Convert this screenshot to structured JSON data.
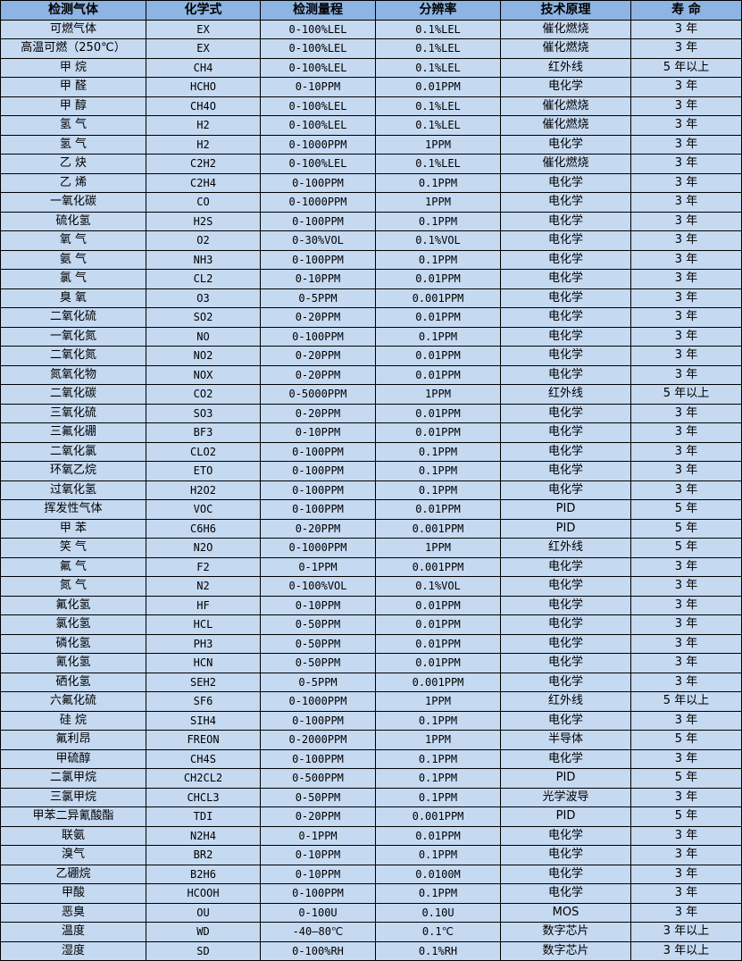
{
  "colors": {
    "header_bg": "#8db4e2",
    "row_bg": "#c5d9f1",
    "border": "#000000"
  },
  "table": {
    "headers": [
      "检测气体",
      "化学式",
      "检测量程",
      "分辨率",
      "技术原理",
      "寿 命"
    ],
    "rows": [
      [
        "可燃气体",
        "EX",
        "0-100%LEL",
        "0.1%LEL",
        "催化燃烧",
        "3 年"
      ],
      [
        "高温可燃（250℃）",
        "EX",
        "0-100%LEL",
        "0.1%LEL",
        "催化燃烧",
        "3 年"
      ],
      [
        "甲 烷",
        "CH4",
        "0-100%LEL",
        "0.1%LEL",
        "红外线",
        "5 年以上"
      ],
      [
        "甲 醛",
        "HCHO",
        "0-10PPM",
        "0.01PPM",
        "电化学",
        "3 年"
      ],
      [
        "甲 醇",
        "CH4O",
        "0-100%LEL",
        "0.1%LEL",
        "催化燃烧",
        "3 年"
      ],
      [
        "氢 气",
        "H2",
        "0-100%LEL",
        "0.1%LEL",
        "催化燃烧",
        "3 年"
      ],
      [
        "氢 气",
        "H2",
        "0-1000PPM",
        "1PPM",
        "电化学",
        "3 年"
      ],
      [
        "乙 炔",
        "C2H2",
        "0-100%LEL",
        "0.1%LEL",
        "催化燃烧",
        "3 年"
      ],
      [
        "乙 烯",
        "C2H4",
        "0-100PPM",
        "0.1PPM",
        "电化学",
        "3 年"
      ],
      [
        "一氧化碳",
        "CO",
        "0-1000PPM",
        "1PPM",
        "电化学",
        "3 年"
      ],
      [
        "硫化氢",
        "H2S",
        "0-100PPM",
        "0.1PPM",
        "电化学",
        "3 年"
      ],
      [
        "氧 气",
        "O2",
        "0-30%VOL",
        "0.1%VOL",
        "电化学",
        "3 年"
      ],
      [
        "氨 气",
        "NH3",
        "0-100PPM",
        "0.1PPM",
        "电化学",
        "3 年"
      ],
      [
        "氯 气",
        "CL2",
        "0-10PPM",
        "0.01PPM",
        "电化学",
        "3 年"
      ],
      [
        "臭 氧",
        "O3",
        "0-5PPM",
        "0.001PPM",
        "电化学",
        "3 年"
      ],
      [
        "二氧化硫",
        "SO2",
        "0-20PPM",
        "0.01PPM",
        "电化学",
        "3 年"
      ],
      [
        "一氧化氮",
        "NO",
        "0-100PPM",
        "0.1PPM",
        "电化学",
        "3 年"
      ],
      [
        "二氧化氮",
        "NO2",
        "0-20PPM",
        "0.01PPM",
        "电化学",
        "3 年"
      ],
      [
        "氮氧化物",
        "NOX",
        "0-20PPM",
        "0.01PPM",
        "电化学",
        "3 年"
      ],
      [
        "二氧化碳",
        "CO2",
        "0-5000PPM",
        "1PPM",
        "红外线",
        "5 年以上"
      ],
      [
        "三氧化硫",
        "SO3",
        "0-20PPM",
        "0.01PPM",
        "电化学",
        "3 年"
      ],
      [
        "三氟化硼",
        "BF3",
        "0-10PPM",
        "0.01PPM",
        "电化学",
        "3 年"
      ],
      [
        "二氧化氯",
        "CLO2",
        "0-100PPM",
        "0.1PPM",
        "电化学",
        "3 年"
      ],
      [
        "环氧乙烷",
        "ETO",
        "0-100PPM",
        "0.1PPM",
        "电化学",
        "3 年"
      ],
      [
        "过氧化氢",
        "H2O2",
        "0-100PPM",
        "0.1PPM",
        "电化学",
        "3 年"
      ],
      [
        "挥发性气体",
        "VOC",
        "0-100PPM",
        "0.01PPM",
        "PID",
        "5 年"
      ],
      [
        "甲 苯",
        "C6H6",
        "0-20PPM",
        "0.001PPM",
        "PID",
        "5 年"
      ],
      [
        "笑 气",
        "N2O",
        "0-1000PPM",
        "1PPM",
        "红外线",
        "5 年"
      ],
      [
        "氟 气",
        "F2",
        "0-1PPM",
        "0.001PPM",
        "电化学",
        "3 年"
      ],
      [
        "氮 气",
        "N2",
        "0-100%VOL",
        "0.1%VOL",
        "电化学",
        "3 年"
      ],
      [
        "氟化氢",
        "HF",
        "0-10PPM",
        "0.01PPM",
        "电化学",
        "3 年"
      ],
      [
        "氯化氢",
        "HCL",
        "0-50PPM",
        "0.01PPM",
        "电化学",
        "3 年"
      ],
      [
        "磷化氢",
        "PH3",
        "0-50PPM",
        "0.01PPM",
        "电化学",
        "3 年"
      ],
      [
        "氰化氢",
        "HCN",
        "0-50PPM",
        "0.01PPM",
        "电化学",
        "3 年"
      ],
      [
        "硒化氢",
        "SEH2",
        "0-5PPM",
        "0.001PPM",
        "电化学",
        "3 年"
      ],
      [
        "六氟化硫",
        "SF6",
        "0-1000PPM",
        "1PPM",
        "红外线",
        "5 年以上"
      ],
      [
        "硅 烷",
        "SIH4",
        "0-100PPM",
        "0.1PPM",
        "电化学",
        "3 年"
      ],
      [
        "氟利昂",
        "FREON",
        "0-2000PPM",
        "1PPM",
        "半导体",
        "5 年"
      ],
      [
        "甲硫醇",
        "CH4S",
        "0-100PPM",
        "0.1PPM",
        "电化学",
        "3 年"
      ],
      [
        "二氯甲烷",
        "CH2CL2",
        "0-500PPM",
        "0.1PPM",
        "PID",
        "5 年"
      ],
      [
        "三氯甲烷",
        "CHCL3",
        "0-50PPM",
        "0.1PPM",
        "光学波导",
        "3 年"
      ],
      [
        "甲苯二异氰酸酯",
        "TDI",
        "0-20PPM",
        "0.001PPM",
        "PID",
        "5 年"
      ],
      [
        "联氨",
        "N2H4",
        "0-1PPM",
        "0.01PPM",
        "电化学",
        "3 年"
      ],
      [
        "溴气",
        "BR2",
        "0-10PPM",
        "0.1PPM",
        "电化学",
        "3 年"
      ],
      [
        "乙硼烷",
        "B2H6",
        "0-10PPM",
        "0.0100M",
        "电化学",
        "3 年"
      ],
      [
        "甲酸",
        "HCOOH",
        "0-100PPM",
        "0.1PPM",
        "电化学",
        "3 年"
      ],
      [
        "恶臭",
        "OU",
        "0-100U",
        "0.10U",
        "MOS",
        "3 年"
      ],
      [
        "温度",
        "WD",
        "-40—80℃",
        "0.1℃",
        "数字芯片",
        "3 年以上"
      ],
      [
        "湿度",
        "SD",
        "0-100%RH",
        "0.1%RH",
        "数字芯片",
        "3 年以上"
      ]
    ]
  }
}
